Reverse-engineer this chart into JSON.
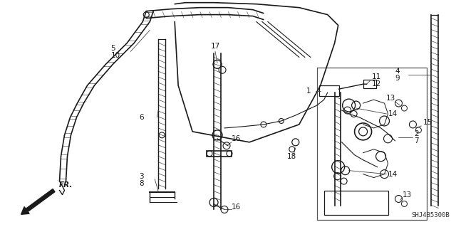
{
  "bg_color": "#ffffff",
  "line_color": "#1a1a1a",
  "label_color": "#1a1a1a",
  "diagram_code": "SHJ4B5300B",
  "figsize": [
    6.4,
    3.19
  ],
  "dpi": 100
}
